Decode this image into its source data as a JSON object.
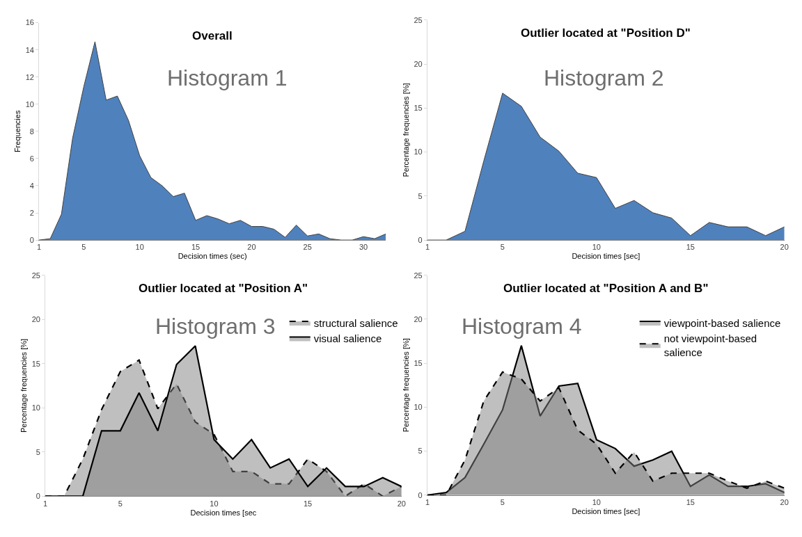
{
  "chart_data": [
    {
      "type": "area",
      "title": "Overall",
      "xlabel": "Decision times (sec)",
      "ylabel": "Frequencies",
      "annotations": [
        "Histogram 1"
      ],
      "x": [
        1,
        2,
        3,
        4,
        5,
        6,
        7,
        8,
        9,
        10,
        11,
        12,
        13,
        14,
        15,
        16,
        17,
        18,
        19,
        20,
        21,
        22,
        23,
        24,
        25,
        26,
        27,
        28,
        29,
        30,
        31,
        32
      ],
      "values": [
        0,
        0.1,
        1.9,
        7.5,
        11.3,
        14.6,
        10.3,
        10.6,
        8.8,
        6.2,
        4.6,
        4.0,
        3.2,
        3.45,
        1.45,
        1.8,
        1.55,
        1.2,
        1.45,
        1.0,
        1.0,
        0.8,
        0.2,
        1.1,
        0.3,
        0.45,
        0.1,
        0,
        0,
        0.25,
        0.1,
        0.45
      ],
      "color": "#4f81bd",
      "xlim": [
        1,
        32
      ],
      "xticks": [
        1,
        5,
        10,
        15,
        20,
        25,
        30
      ],
      "ylim": [
        0,
        16
      ],
      "yticks": [
        0,
        2,
        4,
        6,
        8,
        10,
        12,
        14,
        16
      ],
      "grid": false,
      "legend": false,
      "marker": "none"
    },
    {
      "type": "area",
      "title": "Outlier located at \"Position D\"",
      "xlabel": "Decision times [sec]",
      "ylabel": "Percentage frequencies [%]",
      "annotations": [
        "Histogram 2"
      ],
      "x": [
        1,
        2,
        3,
        4,
        5,
        6,
        7,
        8,
        9,
        10,
        11,
        12,
        13,
        14,
        15,
        16,
        17,
        18,
        19,
        20
      ],
      "values": [
        0,
        0,
        1.0,
        9.0,
        16.7,
        15.2,
        11.7,
        10.1,
        7.6,
        7.1,
        3.6,
        4.5,
        3.1,
        2.5,
        0.5,
        2.0,
        1.5,
        1.5,
        0.5,
        1.5
      ],
      "color": "#4f81bd",
      "xlim": [
        1,
        20
      ],
      "xticks": [
        1,
        5,
        10,
        15,
        20
      ],
      "ylim": [
        0,
        25
      ],
      "yticks": [
        0,
        5,
        10,
        15,
        20,
        25
      ],
      "grid": false,
      "legend": false,
      "marker": "none"
    },
    {
      "type": "area",
      "title": "Outlier located at \"Position A\"",
      "xlabel": "Decision times [sec",
      "ylabel": "Percentage frequencies [%]",
      "annotations": [
        "Histogram 3"
      ],
      "x": [
        1,
        2,
        3,
        4,
        5,
        6,
        7,
        8,
        9,
        10,
        11,
        12,
        13,
        14,
        15,
        16,
        17,
        18,
        19,
        20
      ],
      "series": [
        {
          "name": "structural salience",
          "color": "#808080",
          "line_style": "dashed",
          "values": [
            0,
            0,
            4.2,
            9.8,
            14.1,
            15.4,
            9.9,
            12.7,
            8.4,
            7.0,
            2.8,
            2.8,
            1.4,
            1.4,
            4.2,
            2.8,
            0,
            1.4,
            0,
            1.1
          ]
        },
        {
          "name": "visual salience",
          "color": "#808080",
          "line_style": "solid",
          "values": [
            0,
            0,
            0,
            7.4,
            7.4,
            11.7,
            7.4,
            14.9,
            17.0,
            6.4,
            4.2,
            6.4,
            3.2,
            4.2,
            1.1,
            3.2,
            1.1,
            1.1,
            2.1,
            1.1
          ]
        }
      ],
      "xlim": [
        1,
        20
      ],
      "xticks": [
        1,
        5,
        10,
        15,
        20
      ],
      "ylim": [
        0,
        25
      ],
      "yticks": [
        0,
        5,
        10,
        15,
        20,
        25
      ],
      "grid": false,
      "legend": "top right",
      "marker": "none"
    },
    {
      "type": "area",
      "title": "Outlier located at \"Position A and B\"",
      "xlabel": "Decision times [sec]",
      "ylabel": "Percentage frequencies [%]",
      "annotations": [
        "Histogram 4"
      ],
      "x": [
        1,
        2,
        3,
        4,
        5,
        6,
        7,
        8,
        9,
        10,
        11,
        12,
        13,
        14,
        15,
        16,
        17,
        18,
        19,
        20
      ],
      "series": [
        {
          "name": "viewpoint-based salience",
          "color": "#808080",
          "line_style": "solid",
          "values": [
            0,
            0.3,
            2.0,
            5.8,
            9.7,
            17.0,
            9.0,
            12.4,
            12.7,
            6.3,
            5.3,
            3.3,
            4.0,
            5.0,
            1.0,
            2.3,
            1.0,
            1.0,
            1.3,
            0.3
          ]
        },
        {
          "name": "not viewpoint-based\nsalience",
          "color": "#808080",
          "line_style": "dashed",
          "values": [
            0,
            0,
            4.0,
            10.7,
            14.0,
            13.2,
            10.7,
            12.2,
            7.4,
            5.8,
            2.5,
            4.9,
            1.6,
            2.5,
            2.5,
            2.5,
            1.6,
            0.8,
            1.6,
            0.8
          ]
        }
      ],
      "xlim": [
        1,
        20
      ],
      "xticks": [
        1,
        5,
        10,
        15,
        20
      ],
      "ylim": [
        0,
        25
      ],
      "yticks": [
        0,
        5,
        10,
        15,
        20,
        25
      ],
      "grid": false,
      "legend": "top right",
      "marker": "none"
    }
  ]
}
